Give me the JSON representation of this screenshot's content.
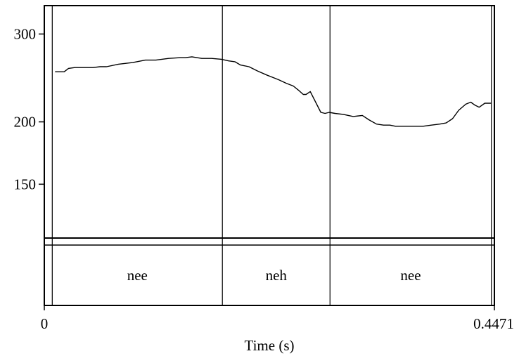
{
  "chart_data": {
    "type": "line",
    "title": "",
    "xlabel": "Time (s)",
    "ylabel": "",
    "xlim": [
      0,
      0.4471
    ],
    "ylim": [
      117,
      342
    ],
    "y_scale": "log",
    "x_tick_labels": [
      "0",
      "0.4471"
    ],
    "y_tick_labels": [
      {
        "value": 300,
        "label": "300"
      },
      {
        "value": 200,
        "label": "200"
      },
      {
        "value": 150,
        "label": "150"
      }
    ],
    "grid": false,
    "boundaries": [
      0.0079,
      0.1769,
      0.2838,
      0.4441
    ],
    "intervals": [
      {
        "start": 0.0079,
        "end": 0.1769,
        "label": "nee"
      },
      {
        "start": 0.1769,
        "end": 0.2838,
        "label": "neh"
      },
      {
        "start": 0.2838,
        "end": 0.4441,
        "label": "nee"
      }
    ],
    "series": [
      {
        "x": [
          0.0107,
          0.0198,
          0.024,
          0.0303,
          0.0394,
          0.0485,
          0.0555,
          0.0618,
          0.0737,
          0.0878,
          0.1004,
          0.1108,
          0.1235,
          0.1347,
          0.1403,
          0.1466,
          0.1564,
          0.1662,
          0.176,
          0.183,
          0.1893,
          0.1949,
          0.2033,
          0.2117,
          0.2215,
          0.2327,
          0.2404,
          0.2474,
          0.253,
          0.2572,
          0.26,
          0.2642,
          0.2747,
          0.2789,
          0.2831,
          0.2887,
          0.2971,
          0.3069,
          0.316,
          0.3223,
          0.33,
          0.337,
          0.3433,
          0.3489,
          0.3573,
          0.3664,
          0.3761,
          0.3845,
          0.3929,
          0.3992,
          0.4055,
          0.4117,
          0.4187,
          0.4236,
          0.4278,
          0.432,
          0.4376,
          0.4439
        ],
        "y": [
          252,
          252,
          256,
          257,
          257,
          257,
          258,
          258,
          261,
          263,
          266,
          266,
          268,
          269,
          269,
          270,
          268,
          268,
          267,
          265,
          264,
          260,
          258,
          253,
          248,
          243,
          239,
          236,
          231,
          227,
          227,
          230,
          209,
          208,
          209,
          208,
          207,
          205,
          206,
          202,
          198,
          197,
          197,
          196,
          196,
          196,
          196,
          197,
          198,
          199,
          203,
          211,
          217,
          219,
          216,
          214,
          218,
          218
        ]
      }
    ]
  }
}
